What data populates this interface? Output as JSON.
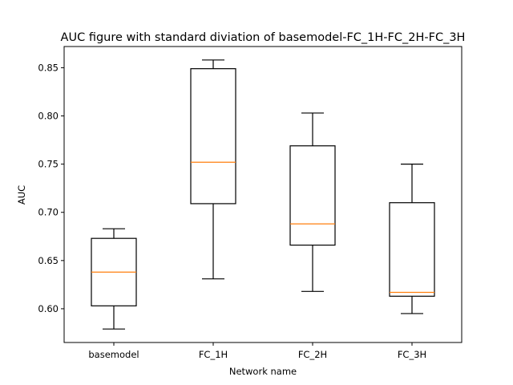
{
  "chart_data": {
    "type": "box",
    "title": "AUC figure with standard diviation of basemodel-FC_1H-FC_2H-FC_3H",
    "xlabel": "Network name",
    "ylabel": "AUC",
    "ylim": [
      0.565,
      0.872
    ],
    "yticks": [
      0.6,
      0.65,
      0.7,
      0.75,
      0.8,
      0.85
    ],
    "ytick_labels": [
      "0.60",
      "0.65",
      "0.70",
      "0.75",
      "0.80",
      "0.85"
    ],
    "categories": [
      "basemodel",
      "FC_1H",
      "FC_2H",
      "FC_3H"
    ],
    "boxes": [
      {
        "name": "basemodel",
        "whislo": 0.579,
        "q1": 0.603,
        "med": 0.638,
        "q3": 0.673,
        "whishi": 0.683
      },
      {
        "name": "FC_1H",
        "whislo": 0.631,
        "q1": 0.709,
        "med": 0.752,
        "q3": 0.849,
        "whishi": 0.858
      },
      {
        "name": "FC_2H",
        "whislo": 0.618,
        "q1": 0.666,
        "med": 0.688,
        "q3": 0.769,
        "whishi": 0.803
      },
      {
        "name": "FC_3H",
        "whislo": 0.595,
        "q1": 0.613,
        "med": 0.617,
        "q3": 0.71,
        "whishi": 0.75
      }
    ],
    "grid": false,
    "legend": "none",
    "colors": {
      "box": "#000000",
      "median": "#ff7f0e",
      "background": "#ffffff"
    }
  }
}
